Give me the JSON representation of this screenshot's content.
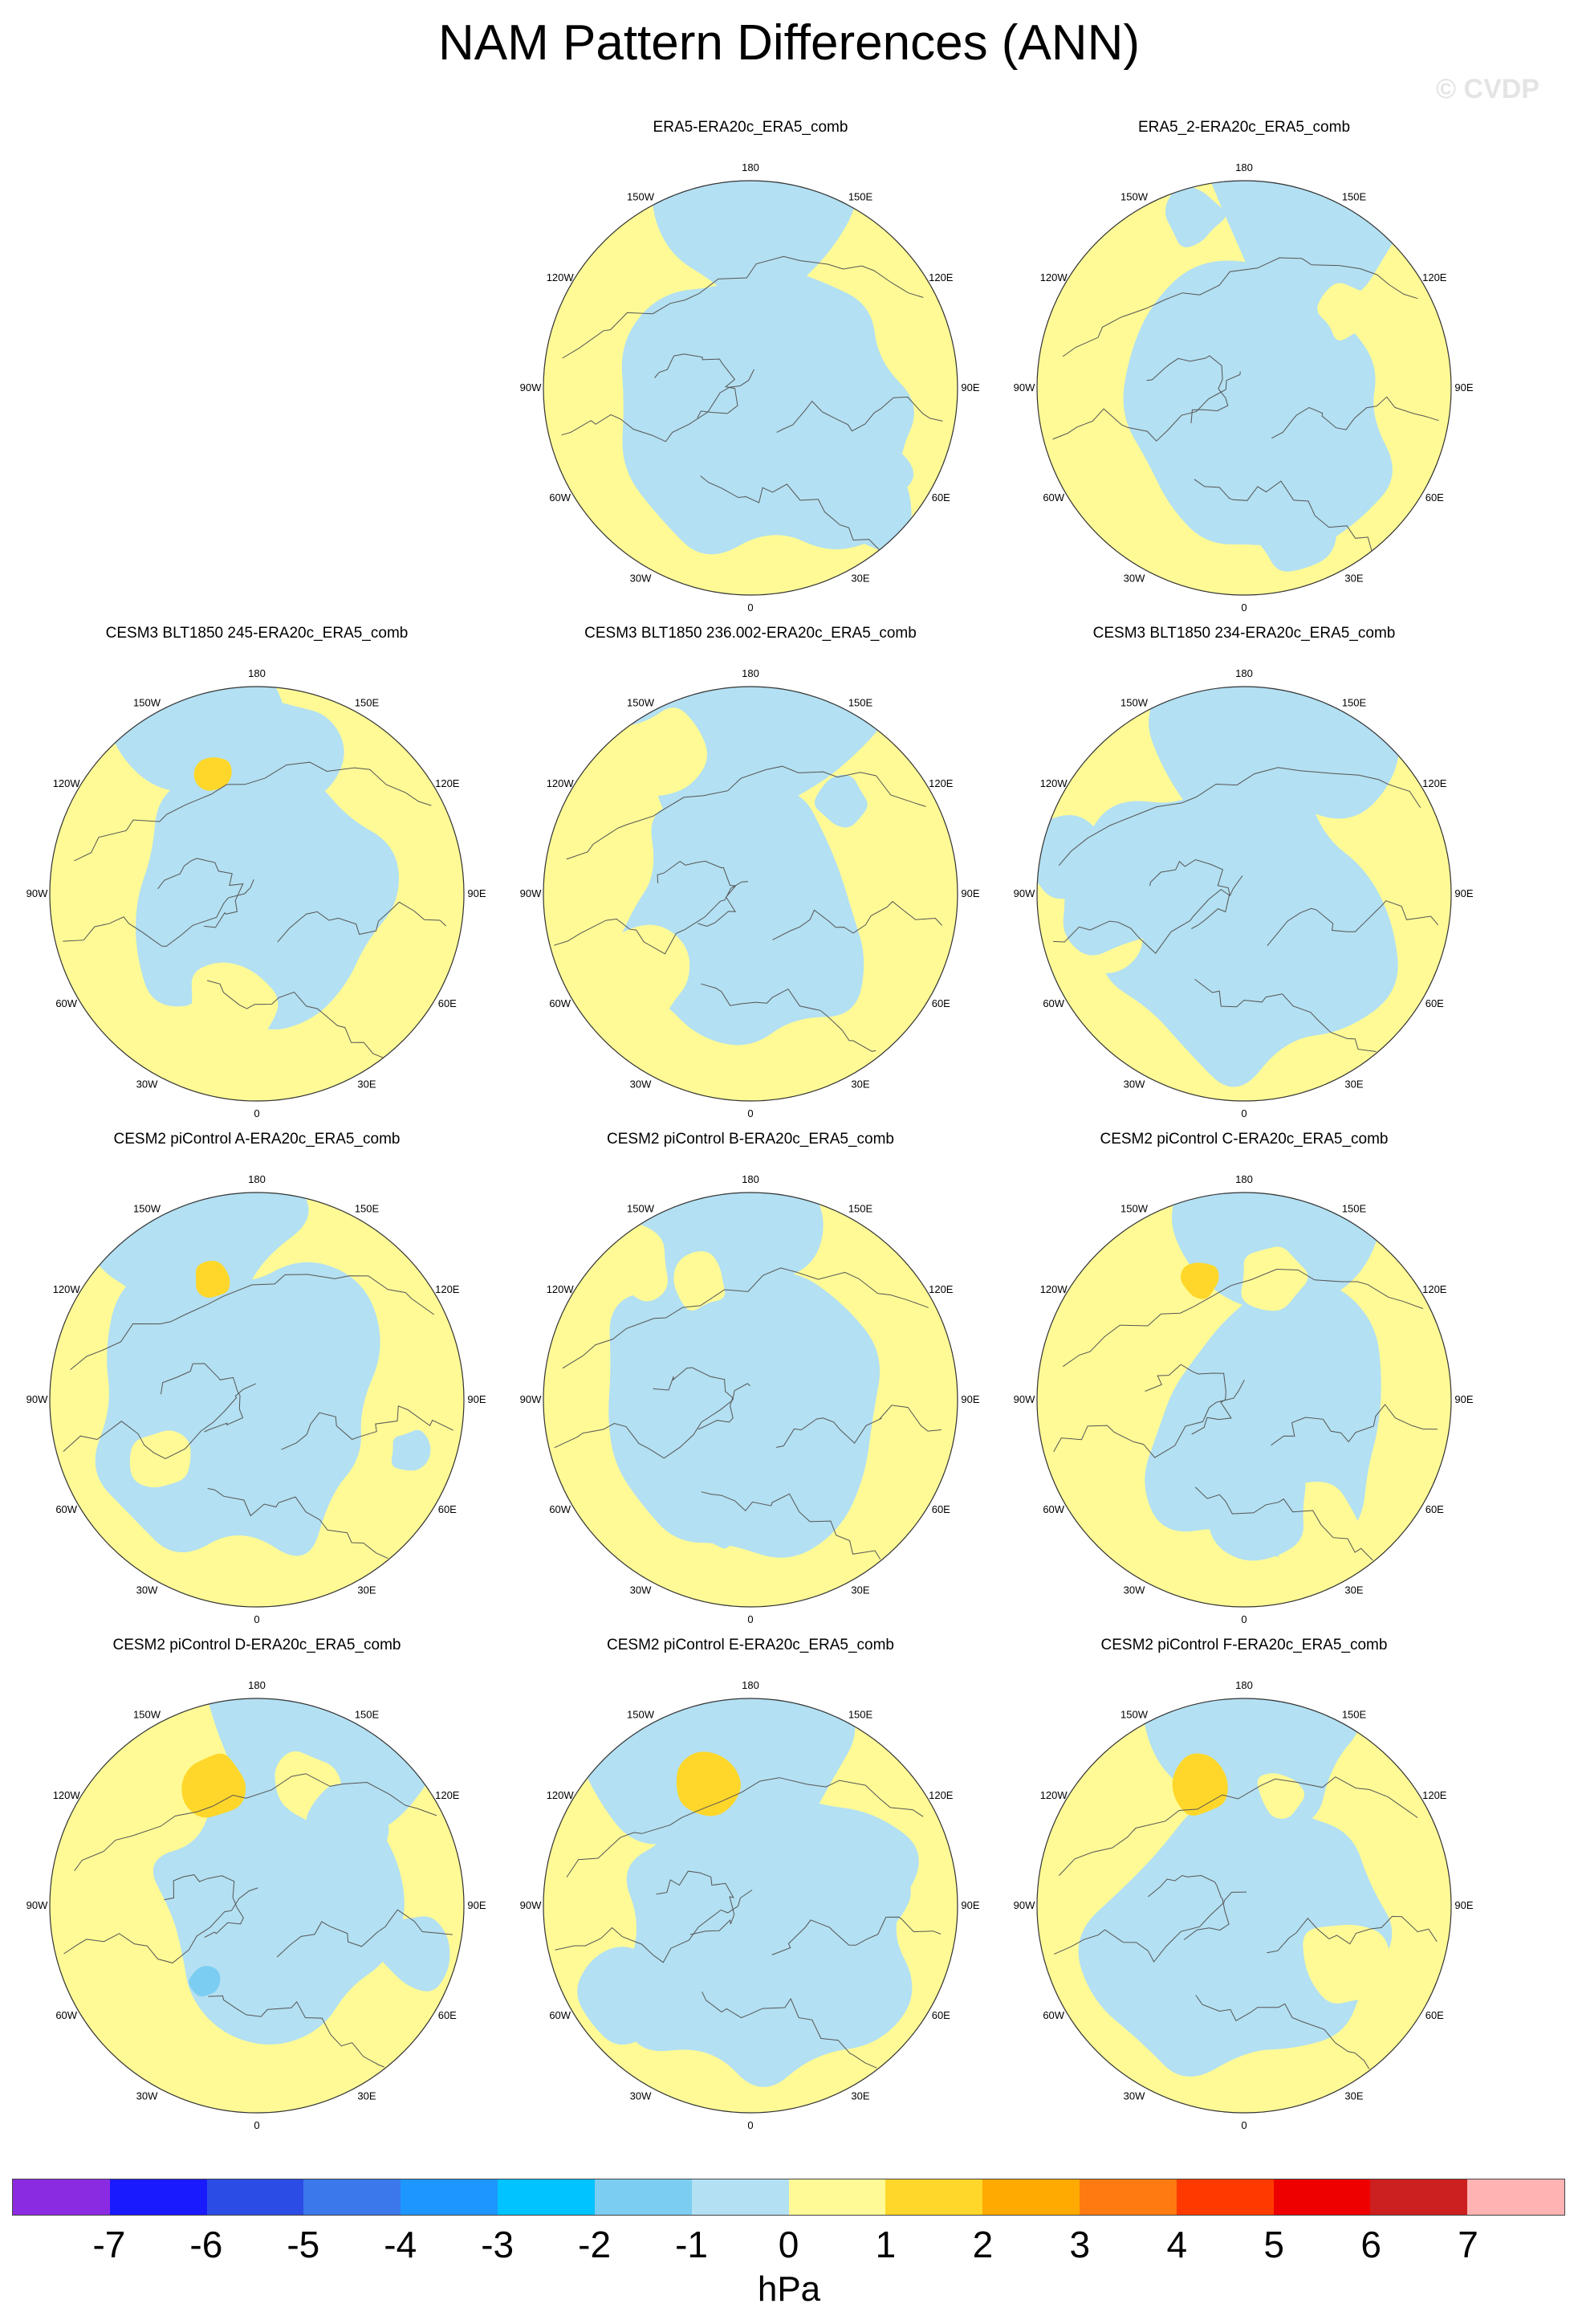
{
  "title": "NAM Pattern Differences (ANN)",
  "copyright": "© CVDP",
  "longitude_labels": [
    "180",
    "150E",
    "120E",
    "90E",
    "60E",
    "30E",
    "0",
    "30W",
    "60W",
    "90W",
    "120W",
    "150W"
  ],
  "panels": [
    {
      "title": "ERA5-ERA20c_ERA5_comb",
      "row": 0,
      "col": 1
    },
    {
      "title": "ERA5_2-ERA20c_ERA5_comb",
      "row": 0,
      "col": 2
    },
    {
      "title": "CESM3 BLT1850 245-ERA20c_ERA5_comb",
      "row": 1,
      "col": 0
    },
    {
      "title": "CESM3 BLT1850 236.002-ERA20c_ERA5_comb",
      "row": 1,
      "col": 1
    },
    {
      "title": "CESM3 BLT1850 234-ERA20c_ERA5_comb",
      "row": 1,
      "col": 2
    },
    {
      "title": "CESM2 piControl A-ERA20c_ERA5_comb",
      "row": 2,
      "col": 0
    },
    {
      "title": "CESM2 piControl B-ERA20c_ERA5_comb",
      "row": 2,
      "col": 1
    },
    {
      "title": "CESM2 piControl C-ERA20c_ERA5_comb",
      "row": 2,
      "col": 2
    },
    {
      "title": "CESM2 piControl D-ERA20c_ERA5_comb",
      "row": 3,
      "col": 0
    },
    {
      "title": "CESM2 piControl E-ERA20c_ERA5_comb",
      "row": 3,
      "col": 1
    },
    {
      "title": "CESM2 piControl F-ERA20c_ERA5_comb",
      "row": 3,
      "col": 2
    }
  ],
  "colorbar": {
    "colors": [
      "#8a2be2",
      "#1a1aff",
      "#2c4ce6",
      "#3a78eb",
      "#1e96ff",
      "#00c3ff",
      "#7ccdf2",
      "#b3e0f2",
      "#fffa96",
      "#ffd72a",
      "#ffaa00",
      "#ff7a10",
      "#ff3a00",
      "#ee0000",
      "#cc1f1f",
      "#ffb3b3"
    ],
    "ticks": [
      "-7",
      "-6",
      "-5",
      "-4",
      "-3",
      "-2",
      "-1",
      "0",
      "1",
      "2",
      "3",
      "4",
      "5",
      "6",
      "7"
    ],
    "units": "hPa"
  },
  "colors": {
    "positive_fill": "#fffa96",
    "negative_fill": "#b3e0f2",
    "strong_positive": "#ffd72a",
    "strong_negative": "#7ccdf2"
  }
}
